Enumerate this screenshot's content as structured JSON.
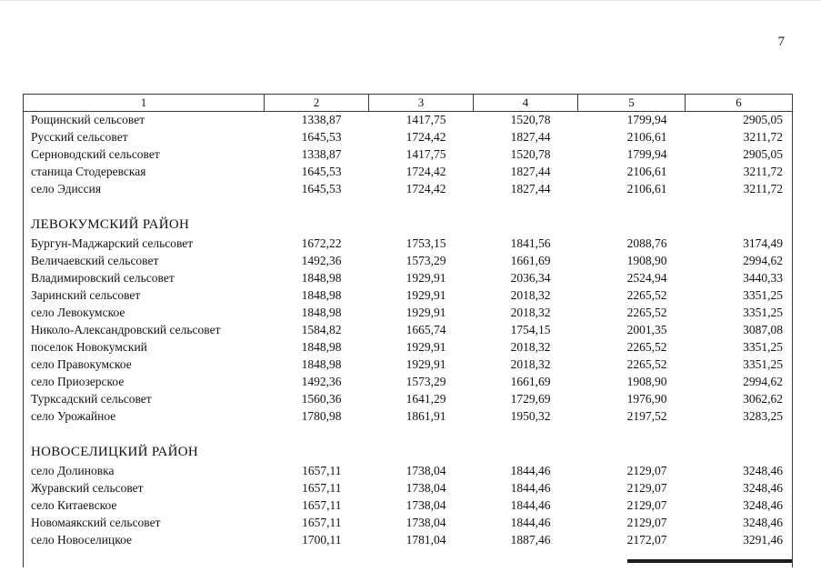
{
  "page": {
    "number": "7"
  },
  "table": {
    "headers": [
      "1",
      "2",
      "3",
      "4",
      "5",
      "6"
    ],
    "rows": [
      {
        "type": "data",
        "name": "Рощинский сельсовет",
        "values": [
          "1338,87",
          "1417,75",
          "1520,78",
          "1799,94",
          "2905,05"
        ]
      },
      {
        "type": "data",
        "name": "Русский сельсовет",
        "values": [
          "1645,53",
          "1724,42",
          "1827,44",
          "2106,61",
          "3211,72"
        ]
      },
      {
        "type": "data",
        "name": "Серноводский сельсовет",
        "values": [
          "1338,87",
          "1417,75",
          "1520,78",
          "1799,94",
          "2905,05"
        ]
      },
      {
        "type": "data",
        "name": "станица Стодеревская",
        "values": [
          "1645,53",
          "1724,42",
          "1827,44",
          "2106,61",
          "3211,72"
        ]
      },
      {
        "type": "data",
        "name": "село Эдиссия",
        "values": [
          "1645,53",
          "1724,42",
          "1827,44",
          "2106,61",
          "3211,72"
        ]
      },
      {
        "type": "spacer"
      },
      {
        "type": "section",
        "name": "ЛЕВОКУМСКИЙ РАЙОН"
      },
      {
        "type": "data",
        "name": "Бургун-Маджарский сельсовет",
        "values": [
          "1672,22",
          "1753,15",
          "1841,56",
          "2088,76",
          "3174,49"
        ]
      },
      {
        "type": "data",
        "name": "Величаевский сельсовет",
        "values": [
          "1492,36",
          "1573,29",
          "1661,69",
          "1908,90",
          "2994,62"
        ]
      },
      {
        "type": "data",
        "name": "Владимировский сельсовет",
        "values": [
          "1848,98",
          "1929,91",
          "2036,34",
          "2524,94",
          "3440,33"
        ]
      },
      {
        "type": "data",
        "name": "Заринский сельсовет",
        "values": [
          "1848,98",
          "1929,91",
          "2018,32",
          "2265,52",
          "3351,25"
        ]
      },
      {
        "type": "data",
        "name": "село Левокумское",
        "values": [
          "1848,98",
          "1929,91",
          "2018,32",
          "2265,52",
          "3351,25"
        ]
      },
      {
        "type": "data",
        "name": "Николо-Александровский сельсовет",
        "values": [
          "1584,82",
          "1665,74",
          "1754,15",
          "2001,35",
          "3087,08"
        ]
      },
      {
        "type": "data",
        "name": "поселок Новокумский",
        "values": [
          "1848,98",
          "1929,91",
          "2018,32",
          "2265,52",
          "3351,25"
        ]
      },
      {
        "type": "data",
        "name": "село Правокумское",
        "values": [
          "1848,98",
          "1929,91",
          "2018,32",
          "2265,52",
          "3351,25"
        ]
      },
      {
        "type": "data",
        "name": "село Приозерское",
        "values": [
          "1492,36",
          "1573,29",
          "1661,69",
          "1908,90",
          "2994,62"
        ]
      },
      {
        "type": "data",
        "name": "Турксадский сельсовет",
        "values": [
          "1560,36",
          "1641,29",
          "1729,69",
          "1976,90",
          "3062,62"
        ]
      },
      {
        "type": "data",
        "name": "село Урожайное",
        "values": [
          "1780,98",
          "1861,91",
          "1950,32",
          "2197,52",
          "3283,25"
        ]
      },
      {
        "type": "spacer"
      },
      {
        "type": "section",
        "name": "НОВОСЕЛИЦКИЙ РАЙОН"
      },
      {
        "type": "data",
        "name": "село Долиновка",
        "values": [
          "1657,11",
          "1738,04",
          "1844,46",
          "2129,07",
          "3248,46"
        ]
      },
      {
        "type": "data",
        "name": "Журавский сельсовет",
        "values": [
          "1657,11",
          "1738,04",
          "1844,46",
          "2129,07",
          "3248,46"
        ]
      },
      {
        "type": "data",
        "name": "село Китаевское",
        "values": [
          "1657,11",
          "1738,04",
          "1844,46",
          "2129,07",
          "3248,46"
        ]
      },
      {
        "type": "data",
        "name": "Новомаякский сельсовет",
        "values": [
          "1657,11",
          "1738,04",
          "1844,46",
          "2129,07",
          "3248,46"
        ]
      },
      {
        "type": "data",
        "name": "село Новоселицкое",
        "values": [
          "1700,11",
          "1781,04",
          "1887,46",
          "2172,07",
          "3291,46"
        ]
      }
    ]
  }
}
